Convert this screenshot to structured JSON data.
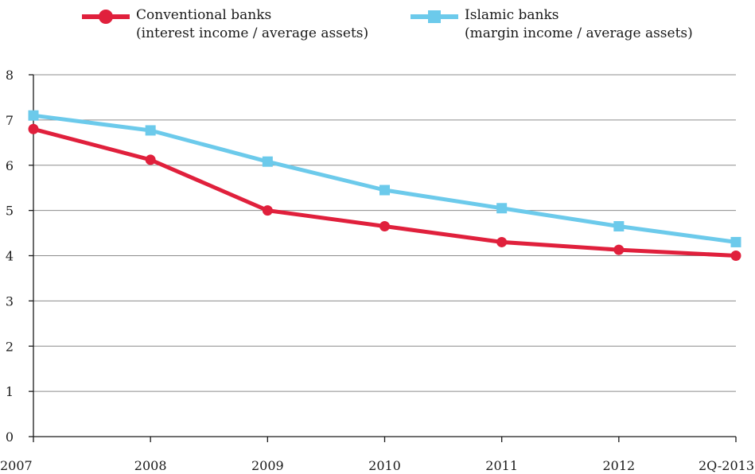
{
  "chart_data": {
    "type": "line",
    "categories": [
      "2007",
      "2008",
      "2009",
      "2010",
      "2011",
      "2012",
      "2Q-2013"
    ],
    "ylim": [
      0,
      8
    ],
    "yticks": [
      0,
      1,
      2,
      3,
      4,
      5,
      6,
      7,
      8
    ],
    "grid": true,
    "legend_position": "top",
    "series": [
      {
        "name": "Conventional banks",
        "name_line2": "(interest income / average assets)",
        "marker": "circle",
        "color": "#e0203c",
        "values": [
          6.8,
          6.12,
          5.0,
          4.65,
          4.3,
          4.13,
          4.0
        ]
      },
      {
        "name": "Islamic banks",
        "name_line2": "(margin income / average assets)",
        "marker": "square",
        "color": "#6ccaeb",
        "values": [
          7.1,
          6.77,
          6.08,
          5.45,
          5.05,
          4.65,
          4.3
        ]
      }
    ]
  }
}
